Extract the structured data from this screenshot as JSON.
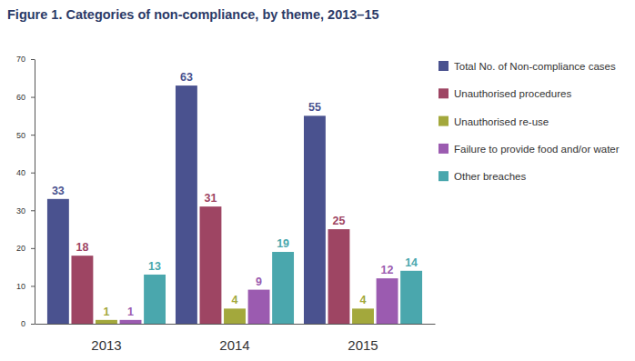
{
  "chart_data": {
    "type": "bar",
    "title": "Figure 1. Categories of non-compliance, by theme, 2013–15",
    "categories": [
      "2013",
      "2014",
      "2015"
    ],
    "series": [
      {
        "name": "Total No. of Non-compliance cases",
        "color": "#4a528f",
        "values": [
          33,
          63,
          55
        ]
      },
      {
        "name": "Unauthorised procedures",
        "color": "#9e4563",
        "values": [
          18,
          31,
          25
        ]
      },
      {
        "name": "Unauthorised re-use",
        "color": "#a3a83c",
        "values": [
          1,
          4,
          4
        ]
      },
      {
        "name": "Failure to provide food and/or water",
        "color": "#9b5bb0",
        "values": [
          1,
          9,
          12
        ]
      },
      {
        "name": "Other breaches",
        "color": "#4aa7ad",
        "values": [
          13,
          19,
          14
        ]
      }
    ],
    "ylim": [
      0,
      70
    ],
    "yticks": [
      0,
      10,
      20,
      30,
      40,
      50,
      60,
      70
    ],
    "grid": false,
    "legend": "right",
    "data_labels": true
  }
}
